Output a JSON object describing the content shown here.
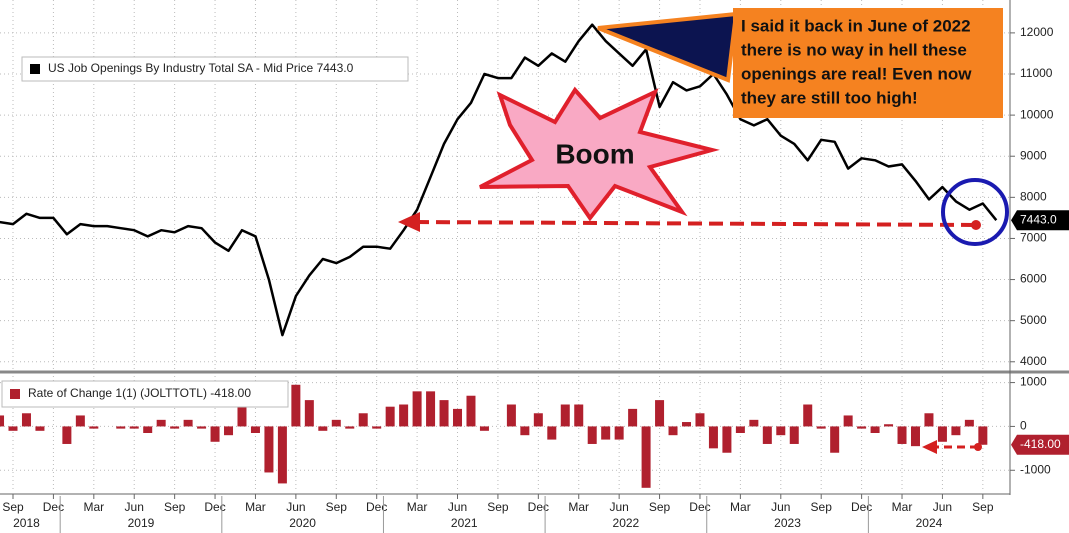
{
  "chart_data": [
    {
      "type": "line",
      "series": [
        {
          "name": "US Job Openings By Industry Total SA - Mid Price 7443.0",
          "color": "#000000",
          "values": [
            7400,
            7350,
            7600,
            7500,
            7500,
            7100,
            7350,
            7300,
            7300,
            7250,
            7200,
            7050,
            7200,
            7150,
            7300,
            7250,
            6900,
            6700,
            7200,
            7050,
            6000,
            4650,
            5600,
            6100,
            6500,
            6400,
            6550,
            6800,
            6800,
            6750,
            7200,
            7700,
            8500,
            9300,
            9900,
            10300,
            11000,
            10900,
            10900,
            11400,
            11200,
            11500,
            11300,
            11800,
            12200,
            11800,
            11500,
            11200,
            11600,
            10200,
            10800,
            10600,
            10700,
            11000,
            10500,
            9900,
            9750,
            9900,
            9500,
            9300,
            8900,
            9400,
            9350,
            8700,
            8950,
            8900,
            8750,
            8800,
            8400,
            7950,
            8250,
            7900,
            7700,
            7850,
            7443
          ]
        }
      ],
      "last_value_label": "7443.0",
      "ylim": [
        3800,
        12800
      ],
      "yticks": [
        4000,
        5000,
        6000,
        7000,
        8000,
        9000,
        10000,
        11000,
        12000
      ],
      "grid": true,
      "annotations": {
        "callout": [
          "I said it back in June of 2022",
          "there is no way in hell these",
          "openings are real! Even now",
          "they are still too high!"
        ],
        "burst": "Boom"
      }
    },
    {
      "type": "bar",
      "categories": [
        null,
        "Sep",
        null,
        null,
        "Dec",
        null,
        null,
        "Mar",
        null,
        null,
        "Jun",
        null,
        null,
        "Sep",
        null,
        null,
        "Dec",
        null,
        null,
        "Mar",
        null,
        null,
        "Jun",
        null,
        null,
        "Sep",
        null,
        null,
        "Dec",
        null,
        null,
        "Mar",
        null,
        null,
        "Jun",
        null,
        null,
        "Sep",
        null,
        null,
        "Dec",
        null,
        null,
        "Mar",
        null,
        null,
        "Jun",
        null,
        null,
        "Sep",
        null,
        null,
        "Dec",
        null,
        null,
        "Mar",
        null,
        null,
        "Jun",
        null,
        null,
        "Sep",
        null,
        null,
        "Dec",
        null,
        null,
        "Mar",
        null,
        null,
        "Jun",
        null,
        null,
        "Sep"
      ],
      "years": [
        "2018",
        "2019",
        "2020",
        "2021",
        "2022",
        "2023",
        "2024"
      ],
      "series": [
        {
          "name": "Rate of Change 1(1) (JOLTTOTL) -418.00",
          "color": "#b0202e",
          "values": [
            250,
            -100,
            300,
            -100,
            0,
            -400,
            250,
            -50,
            0,
            -50,
            -50,
            -150,
            150,
            -50,
            150,
            -50,
            -350,
            -200,
            500,
            -150,
            -1050,
            -1300,
            950,
            600,
            -100,
            150,
            -50,
            300,
            -50,
            450,
            500,
            800,
            800,
            600,
            400,
            700,
            -100,
            0,
            500,
            -200,
            300,
            -300,
            500,
            500,
            -400,
            -300,
            -300,
            400,
            -1400,
            600,
            -200,
            100,
            300,
            -500,
            -600,
            -150,
            150,
            -400,
            -200,
            -400,
            500,
            -50,
            -600,
            250,
            -50,
            -150,
            50,
            -400,
            -450,
            300,
            -350,
            -200,
            150,
            -418
          ]
        }
      ],
      "last_value_label": "-418.00",
      "ylim": [
        -1450,
        1150
      ],
      "yticks": [
        -1000,
        0,
        1000
      ],
      "grid": true
    }
  ]
}
